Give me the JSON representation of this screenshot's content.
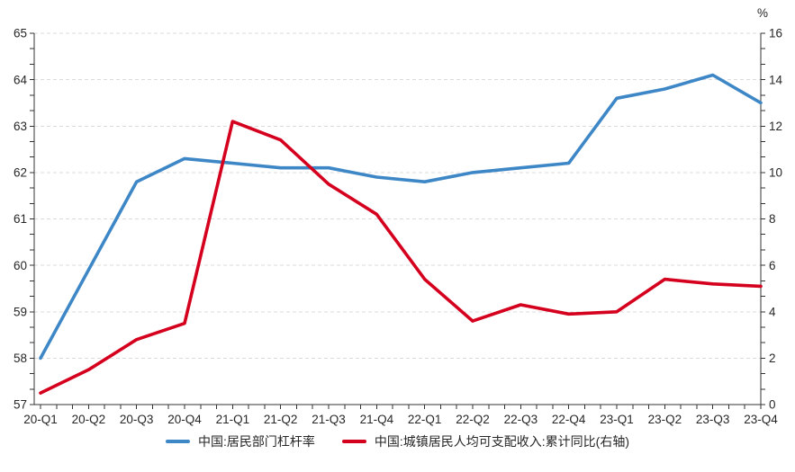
{
  "chart_data": {
    "type": "line",
    "categories": [
      "20-Q1",
      "20-Q2",
      "20-Q3",
      "20-Q4",
      "21-Q1",
      "21-Q2",
      "21-Q3",
      "21-Q4",
      "22-Q1",
      "22-Q2",
      "22-Q3",
      "22-Q4",
      "23-Q1",
      "23-Q2",
      "23-Q3",
      "23-Q4"
    ],
    "series": [
      {
        "name": "中国:居民部门杠杆率",
        "axis": "left",
        "color": "#3E87C7",
        "values": [
          58.0,
          59.9,
          61.8,
          62.3,
          62.2,
          62.1,
          62.1,
          61.9,
          61.8,
          62.0,
          62.1,
          62.2,
          63.6,
          63.8,
          64.1,
          63.5
        ]
      },
      {
        "name": "中国:城镇居民人均可支配收入:累计同比(右轴)",
        "axis": "right",
        "color": "#D4001E",
        "values": [
          0.5,
          1.5,
          2.8,
          3.5,
          12.2,
          11.4,
          9.5,
          8.2,
          5.4,
          3.6,
          4.3,
          3.9,
          4.0,
          5.4,
          5.2,
          5.1
        ]
      }
    ],
    "left_axis": {
      "min": 57,
      "max": 65,
      "step": 1,
      "tick_labels": [
        "57",
        "58",
        "59",
        "60",
        "61",
        "62",
        "63",
        "64",
        "65"
      ]
    },
    "right_axis": {
      "min": 0,
      "max": 16,
      "step": 2,
      "unit": "%",
      "tick_labels": [
        "0",
        "2",
        "4",
        "6",
        "8",
        "10",
        "12",
        "14",
        "16"
      ]
    },
    "grid": "horizontal-dashed",
    "legend_position": "bottom-center",
    "colors": {
      "grid": "#DBDBDB",
      "axis": "#333333",
      "text": "#262626",
      "background": "#FFFFFF"
    }
  }
}
